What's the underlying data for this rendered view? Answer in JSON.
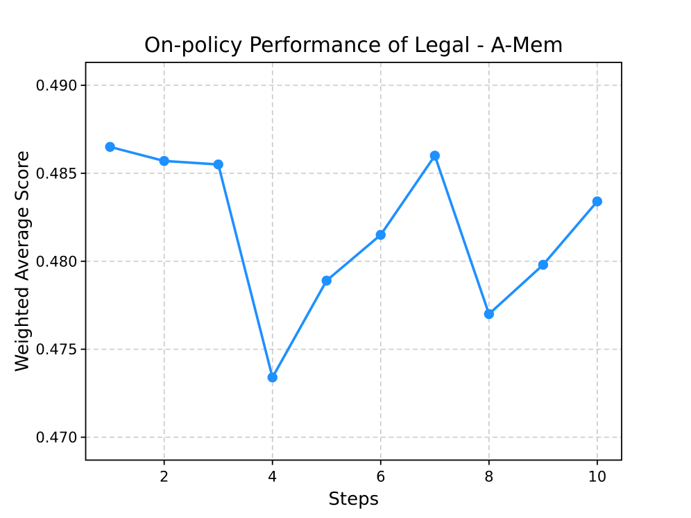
{
  "chart_data": {
    "type": "line",
    "title": "On-policy Performance of Legal - A-Mem",
    "xlabel": "Steps",
    "ylabel": "Weighted Average Score",
    "x": [
      1,
      2,
      3,
      4,
      5,
      6,
      7,
      8,
      9,
      10
    ],
    "y": [
      0.4865,
      0.4857,
      0.4855,
      0.4734,
      0.4789,
      0.4815,
      0.486,
      0.477,
      0.4798,
      0.4834
    ],
    "xlim": [
      0.55,
      10.45
    ],
    "ylim": [
      0.4687,
      0.4913
    ],
    "xticks": {
      "values": [
        2,
        4,
        6,
        8,
        10
      ],
      "labels": [
        "2",
        "4",
        "6",
        "8",
        "10"
      ]
    },
    "yticks": {
      "values": [
        0.47,
        0.475,
        0.48,
        0.485,
        0.49
      ],
      "labels": [
        "0.470",
        "0.475",
        "0.480",
        "0.485",
        "0.490"
      ]
    },
    "grid": true,
    "grid_style": "dashed",
    "legend": false,
    "marker": "circle",
    "colors": {
      "line": "#1E90FF",
      "marker": "#1E90FF",
      "grid": "#C8C8C8",
      "spine": "#000000",
      "text": "#000000",
      "background": "#FFFFFF"
    }
  }
}
